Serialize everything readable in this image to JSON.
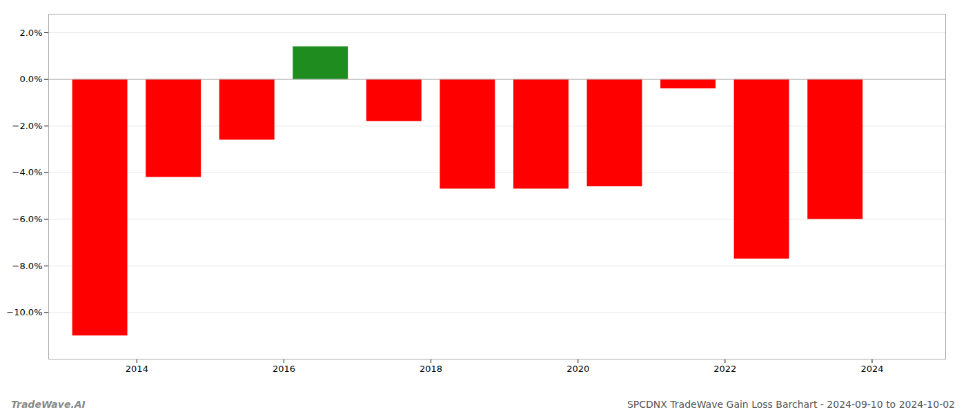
{
  "chart_data": {
    "type": "bar",
    "title": "SPCDNX TradeWave Gain Loss Barchart - 2024-09-10 to 2024-10-02",
    "annotations": [
      "TradeWave.AI"
    ],
    "x": [
      2013.5,
      2014.5,
      2015.5,
      2016.5,
      2017.5,
      2018.5,
      2019.5,
      2020.5,
      2021.5,
      2022.5,
      2023.5
    ],
    "values": [
      -11.0,
      -4.2,
      -2.6,
      1.4,
      -1.8,
      -4.7,
      -4.7,
      -4.6,
      -0.4,
      -7.7,
      -6.0
    ],
    "colors": [
      "#ff0000",
      "#ff0000",
      "#ff0000",
      "#1f8c1f",
      "#ff0000",
      "#ff0000",
      "#ff0000",
      "#ff0000",
      "#ff0000",
      "#ff0000",
      "#ff0000"
    ],
    "xlim": [
      2012.8,
      2025.0
    ],
    "xticks": [
      2014,
      2016,
      2018,
      2020,
      2022,
      2024
    ],
    "ylim": [
      -12.0,
      2.8
    ],
    "yticks": [
      {
        "value": 2.0,
        "label": "2.0%"
      },
      {
        "value": 0.0,
        "label": "0.0%"
      },
      {
        "value": -2.0,
        "label": "−2.0%"
      },
      {
        "value": -4.0,
        "label": "−4.0%"
      },
      {
        "value": -6.0,
        "label": "−6.0%"
      },
      {
        "value": -8.0,
        "label": "−8.0%"
      },
      {
        "value": -10.0,
        "label": "−10.0%"
      }
    ],
    "grid": true
  }
}
